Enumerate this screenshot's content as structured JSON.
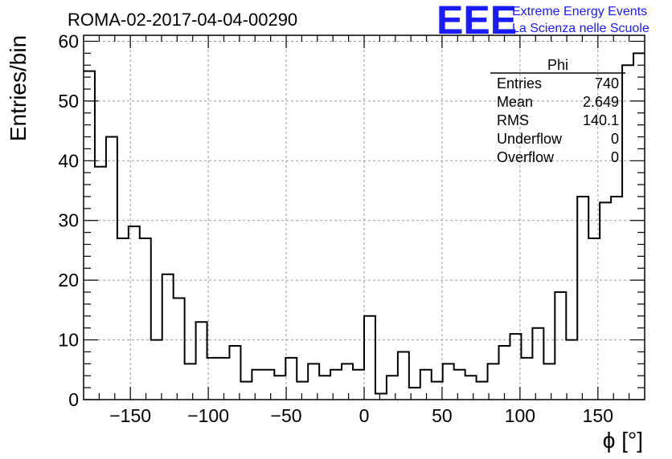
{
  "chart_data": {
    "type": "bar",
    "title": "ROMA-02-2017-04-04-00290",
    "xlabel": "ϕ [°]",
    "ylabel": "Entries/bin",
    "xlim": [
      -180,
      180
    ],
    "ylim": [
      0,
      61
    ],
    "bin_width": 7.2,
    "x_ticks": [
      -150,
      -100,
      -50,
      0,
      50,
      100,
      150
    ],
    "x_tick_labels": [
      "−150",
      "−100",
      "−50",
      "0",
      "50",
      "100",
      "150"
    ],
    "y_ticks": [
      0,
      10,
      20,
      30,
      40,
      50,
      60
    ],
    "y_tick_labels": [
      "0",
      "10",
      "20",
      "30",
      "40",
      "50",
      "60"
    ],
    "grid": true,
    "values": [
      55,
      39,
      44,
      27,
      29,
      27,
      10,
      21,
      17,
      6,
      13,
      7,
      7,
      9,
      3,
      5,
      5,
      4,
      7,
      3,
      6,
      4,
      5,
      6,
      5,
      14,
      1,
      4,
      8,
      2,
      5,
      3,
      6,
      5,
      4,
      3,
      6,
      9,
      11,
      7,
      12,
      6,
      18,
      10,
      34,
      27,
      33,
      34,
      56,
      58
    ],
    "stats_box": {
      "title": "Phi",
      "rows": [
        {
          "label": "Entries",
          "value": "740"
        },
        {
          "label": "Mean",
          "value": "2.649"
        },
        {
          "label": "RMS",
          "value": "140.1"
        },
        {
          "label": "Underflow",
          "value": "0"
        },
        {
          "label": "Overflow",
          "value": "0"
        }
      ]
    },
    "logo": {
      "mark": "EEE",
      "line1": "Extreme Energy Events",
      "line2": "La Scienza nelle Scuole",
      "color": "#1a1aff"
    }
  }
}
